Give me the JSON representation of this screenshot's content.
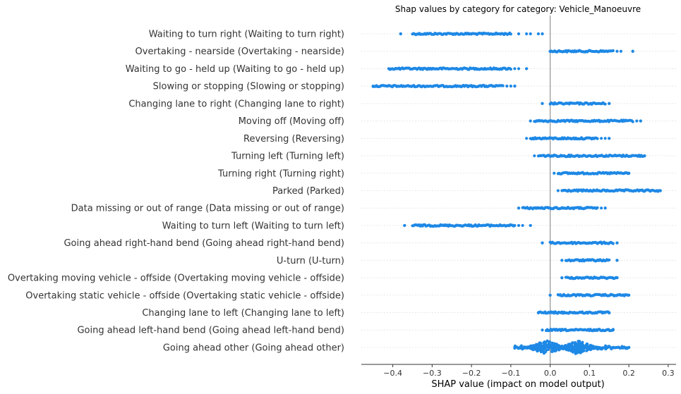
{
  "chart_data": {
    "type": "scatter",
    "subtype": "shap-beeswarm",
    "title": "Shap values by category for category: Vehicle_Manoeuvre",
    "xlabel": "SHAP value (impact on model output)",
    "ylabel": "",
    "xlim": [
      -0.48,
      0.32
    ],
    "xticks": [
      -0.4,
      -0.3,
      -0.2,
      -0.1,
      0.0,
      0.1,
      0.2,
      0.3
    ],
    "xtick_labels": [
      "−0.4",
      "−0.3",
      "−0.2",
      "−0.1",
      "0.0",
      "0.1",
      "0.2",
      "0.3"
    ],
    "zero_line": true,
    "grid": false,
    "point_color": "#1E88E5",
    "zero_line_color": "#999999",
    "categories": [
      {
        "label": "Waiting to turn right (Waiting to turn right)",
        "min": -0.38,
        "dense": [
          -0.35,
          -0.1
        ],
        "max": -0.02,
        "outliers": [
          -0.38,
          -0.08,
          -0.06,
          -0.05,
          -0.03,
          -0.02
        ]
      },
      {
        "label": "Overtaking - nearside (Overtaking - nearside)",
        "min": 0.0,
        "dense": [
          0.0,
          0.16
        ],
        "max": 0.21,
        "outliers": [
          0.17,
          0.18,
          0.21
        ]
      },
      {
        "label": "Waiting to go - held up (Waiting to go - held up)",
        "min": -0.41,
        "dense": [
          -0.41,
          -0.1
        ],
        "max": -0.06,
        "outliers": [
          -0.09,
          -0.08,
          -0.06
        ]
      },
      {
        "label": "Slowing or stopping (Slowing or stopping)",
        "min": -0.45,
        "dense": [
          -0.45,
          -0.12
        ],
        "max": -0.09,
        "outliers": [
          -0.11,
          -0.1,
          -0.09
        ]
      },
      {
        "label": "Changing lane to right (Changing lane to right)",
        "min": -0.02,
        "dense": [
          0.0,
          0.14
        ],
        "max": 0.15,
        "outliers": [
          -0.02,
          0.15
        ]
      },
      {
        "label": "Moving off (Moving off)",
        "min": -0.05,
        "dense": [
          -0.04,
          0.21
        ],
        "max": 0.23,
        "outliers": [
          0.22,
          0.23
        ]
      },
      {
        "label": "Reversing (Reversing)",
        "min": -0.06,
        "dense": [
          -0.05,
          0.12
        ],
        "max": 0.15,
        "outliers": [
          0.13,
          0.14,
          0.15
        ]
      },
      {
        "label": "Turning left (Turning left)",
        "min": -0.04,
        "dense": [
          -0.03,
          0.24
        ],
        "max": 0.24,
        "outliers": []
      },
      {
        "label": "Turning right (Turning right)",
        "min": 0.01,
        "dense": [
          0.02,
          0.2
        ],
        "max": 0.2,
        "outliers": [
          0.2
        ]
      },
      {
        "label": "Parked (Parked)",
        "min": 0.02,
        "dense": [
          0.03,
          0.28
        ],
        "max": 0.28,
        "outliers": []
      },
      {
        "label": "Data missing or out of range (Data missing or out of range)",
        "min": -0.08,
        "dense": [
          -0.07,
          0.12
        ],
        "max": 0.14,
        "outliers": [
          -0.08,
          0.13,
          0.14
        ]
      },
      {
        "label": "Waiting to turn left (Waiting to turn left)",
        "min": -0.37,
        "dense": [
          -0.35,
          -0.09
        ],
        "max": -0.05,
        "outliers": [
          -0.37,
          -0.08,
          -0.07,
          -0.05
        ]
      },
      {
        "label": "Going ahead right-hand bend (Going ahead right-hand bend)",
        "min": -0.02,
        "dense": [
          0.0,
          0.16
        ],
        "max": 0.17,
        "outliers": [
          -0.02,
          0.17
        ]
      },
      {
        "label": "U-turn (U-turn)",
        "min": 0.03,
        "dense": [
          0.04,
          0.15
        ],
        "max": 0.17,
        "outliers": [
          0.03,
          0.17
        ]
      },
      {
        "label": "Overtaking moving vehicle - offside (Overtaking moving vehicle - offside)",
        "min": 0.03,
        "dense": [
          0.04,
          0.17
        ],
        "max": 0.17,
        "outliers": [
          0.03
        ]
      },
      {
        "label": "Overtaking static vehicle - offside (Overtaking static vehicle - offside)",
        "min": 0.0,
        "dense": [
          0.02,
          0.2
        ],
        "max": 0.2,
        "outliers": [
          0.0
        ]
      },
      {
        "label": "Changing lane to left (Changing lane to left)",
        "min": -0.03,
        "dense": [
          -0.03,
          0.15
        ],
        "max": 0.15,
        "outliers": []
      },
      {
        "label": "Going ahead left-hand bend (Going ahead left-hand bend)",
        "min": -0.02,
        "dense": [
          -0.01,
          0.16
        ],
        "max": 0.16,
        "outliers": []
      },
      {
        "label": "Going ahead other (Going ahead other)",
        "min": -0.09,
        "dense": [
          -0.09,
          0.2
        ],
        "max": 0.2,
        "outliers": [
          0.19,
          0.2
        ],
        "swarm_peaks": [
          -0.01,
          0.07
        ]
      }
    ]
  }
}
